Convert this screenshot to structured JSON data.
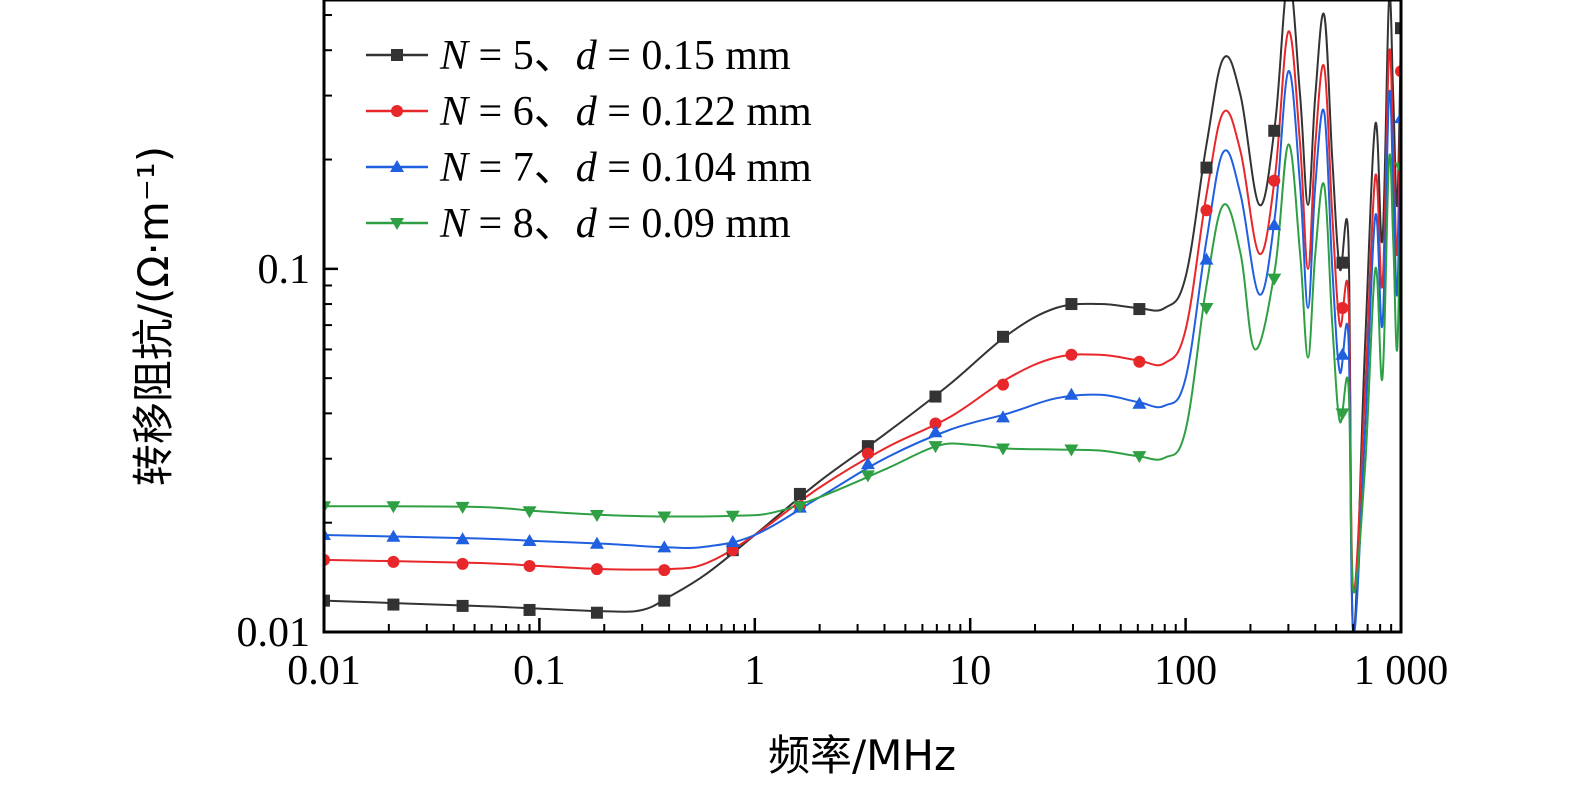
{
  "chart_data": {
    "type": "line",
    "xscale": "log",
    "yscale": "log",
    "xlim": [
      0.01,
      1000
    ],
    "ylim": [
      0.01,
      0.55
    ],
    "xlabel": "频率/MHz",
    "ylabel": "转移阻抗/(Ω·m⁻¹)",
    "xticks": [
      0.01,
      0.1,
      1,
      10,
      100,
      1000
    ],
    "xtick_labels": [
      "0.01",
      "0.1",
      "1",
      "10",
      "100",
      "1 000"
    ],
    "yticks": [
      0.01,
      0.1
    ],
    "ytick_labels": [
      "0.01",
      "0.1"
    ],
    "legend_position": "top-left",
    "series": [
      {
        "name": "N = 5、d = 0.15 mm",
        "legend": {
          "n_sym": "N",
          "n_eq": " = 5、",
          "d_sym": "d",
          "d_eq": " = 0.15 mm"
        },
        "color": "#333333",
        "marker": "square",
        "markers": [
          [
            0.01,
            0.0122
          ],
          [
            0.021,
            0.0119
          ],
          [
            0.044,
            0.0118
          ],
          [
            0.09,
            0.0115
          ],
          [
            0.185,
            0.0113
          ],
          [
            0.38,
            0.0122
          ],
          [
            0.79,
            0.0168
          ],
          [
            1.62,
            0.024
          ],
          [
            3.35,
            0.0325
          ],
          [
            6.9,
            0.0445
          ],
          [
            14.2,
            0.065
          ],
          [
            29.5,
            0.08
          ],
          [
            61,
            0.0775
          ],
          [
            125,
            0.19
          ],
          [
            258,
            0.24
          ],
          [
            535,
            0.104
          ],
          [
            1000,
            0.46
          ]
        ],
        "curve": [
          [
            0.01,
            0.0122
          ],
          [
            0.05,
            0.0118
          ],
          [
            0.1,
            0.0116
          ],
          [
            0.2,
            0.0114
          ],
          [
            0.3,
            0.0115
          ],
          [
            0.4,
            0.0125
          ],
          [
            0.6,
            0.0145
          ],
          [
            1,
            0.0185
          ],
          [
            2,
            0.026
          ],
          [
            4,
            0.035
          ],
          [
            8,
            0.048
          ],
          [
            15,
            0.066
          ],
          [
            25,
            0.078
          ],
          [
            40,
            0.08
          ],
          [
            60,
            0.078
          ],
          [
            80,
            0.078
          ],
          [
            100,
            0.095
          ],
          [
            125,
            0.22
          ],
          [
            150,
            0.38
          ],
          [
            180,
            0.3
          ],
          [
            220,
            0.15
          ],
          [
            260,
            0.25
          ],
          [
            300,
            0.63
          ],
          [
            340,
            0.3
          ],
          [
            370,
            0.15
          ],
          [
            400,
            0.3
          ],
          [
            440,
            0.5
          ],
          [
            480,
            0.2
          ],
          [
            520,
            0.1
          ],
          [
            570,
            0.12
          ],
          [
            600,
            0.01
          ],
          [
            680,
            0.06
          ],
          [
            760,
            0.25
          ],
          [
            820,
            0.12
          ],
          [
            880,
            0.55
          ],
          [
            920,
            0.3
          ],
          [
            960,
            0.15
          ],
          [
            1000,
            0.46
          ]
        ]
      },
      {
        "name": "N = 6、d = 0.122 mm",
        "legend": {
          "n_sym": "N",
          "n_eq": " = 6、",
          "d_sym": "d",
          "d_eq": " = 0.122 mm"
        },
        "color": "#e8272a",
        "marker": "circle",
        "markers": [
          [
            0.01,
            0.0158
          ],
          [
            0.021,
            0.0156
          ],
          [
            0.044,
            0.0154
          ],
          [
            0.09,
            0.0152
          ],
          [
            0.185,
            0.0149
          ],
          [
            0.38,
            0.0148
          ],
          [
            0.79,
            0.0168
          ],
          [
            1.62,
            0.0222
          ],
          [
            3.35,
            0.031
          ],
          [
            6.9,
            0.0375
          ],
          [
            14.2,
            0.048
          ],
          [
            29.5,
            0.058
          ],
          [
            61,
            0.0555
          ],
          [
            125,
            0.145
          ],
          [
            258,
            0.175
          ],
          [
            535,
            0.078
          ],
          [
            1000,
            0.35
          ]
        ],
        "curve": [
          [
            0.01,
            0.0158
          ],
          [
            0.05,
            0.0155
          ],
          [
            0.1,
            0.0152
          ],
          [
            0.2,
            0.0149
          ],
          [
            0.4,
            0.0149
          ],
          [
            0.6,
            0.0155
          ],
          [
            1,
            0.0185
          ],
          [
            2,
            0.025
          ],
          [
            4,
            0.032
          ],
          [
            8,
            0.039
          ],
          [
            15,
            0.05
          ],
          [
            25,
            0.057
          ],
          [
            40,
            0.058
          ],
          [
            60,
            0.056
          ],
          [
            80,
            0.055
          ],
          [
            100,
            0.068
          ],
          [
            125,
            0.16
          ],
          [
            150,
            0.27
          ],
          [
            180,
            0.21
          ],
          [
            220,
            0.11
          ],
          [
            260,
            0.18
          ],
          [
            300,
            0.45
          ],
          [
            340,
            0.22
          ],
          [
            370,
            0.1
          ],
          [
            400,
            0.22
          ],
          [
            440,
            0.36
          ],
          [
            480,
            0.14
          ],
          [
            520,
            0.07
          ],
          [
            570,
            0.085
          ],
          [
            600,
            0.013
          ],
          [
            680,
            0.045
          ],
          [
            760,
            0.18
          ],
          [
            820,
            0.09
          ],
          [
            880,
            0.39
          ],
          [
            920,
            0.22
          ],
          [
            960,
            0.11
          ],
          [
            1000,
            0.35
          ]
        ]
      },
      {
        "name": "N = 7、d = 0.104 mm",
        "legend": {
          "n_sym": "N",
          "n_eq": " = 7、",
          "d_sym": "d",
          "d_eq": " = 0.104 mm"
        },
        "color": "#1f5fe0",
        "marker": "triangle-up",
        "markers": [
          [
            0.01,
            0.0185
          ],
          [
            0.021,
            0.0183
          ],
          [
            0.044,
            0.018
          ],
          [
            0.09,
            0.0178
          ],
          [
            0.185,
            0.0175
          ],
          [
            0.38,
            0.0171
          ],
          [
            0.79,
            0.0177
          ],
          [
            1.62,
            0.022
          ],
          [
            3.35,
            0.029
          ],
          [
            6.9,
            0.0355
          ],
          [
            14.2,
            0.039
          ],
          [
            29.5,
            0.045
          ],
          [
            61,
            0.0425
          ],
          [
            125,
            0.106
          ],
          [
            258,
            0.132
          ],
          [
            535,
            0.058
          ],
          [
            1000,
            0.26
          ]
        ],
        "curve": [
          [
            0.01,
            0.0185
          ],
          [
            0.05,
            0.0181
          ],
          [
            0.1,
            0.0178
          ],
          [
            0.2,
            0.0175
          ],
          [
            0.4,
            0.0171
          ],
          [
            0.6,
            0.0172
          ],
          [
            1,
            0.0185
          ],
          [
            2,
            0.0235
          ],
          [
            4,
            0.03
          ],
          [
            8,
            0.036
          ],
          [
            15,
            0.04
          ],
          [
            25,
            0.044
          ],
          [
            40,
            0.045
          ],
          [
            60,
            0.043
          ],
          [
            80,
            0.042
          ],
          [
            100,
            0.05
          ],
          [
            125,
            0.12
          ],
          [
            150,
            0.21
          ],
          [
            180,
            0.16
          ],
          [
            220,
            0.085
          ],
          [
            260,
            0.14
          ],
          [
            300,
            0.35
          ],
          [
            340,
            0.17
          ],
          [
            370,
            0.078
          ],
          [
            400,
            0.17
          ],
          [
            440,
            0.27
          ],
          [
            480,
            0.1
          ],
          [
            520,
            0.052
          ],
          [
            570,
            0.065
          ],
          [
            600,
            0.01
          ],
          [
            680,
            0.035
          ],
          [
            760,
            0.14
          ],
          [
            820,
            0.07
          ],
          [
            880,
            0.3
          ],
          [
            920,
            0.17
          ],
          [
            960,
            0.085
          ],
          [
            1000,
            0.26
          ]
        ]
      },
      {
        "name": "N = 8、d = 0.09 mm",
        "legend": {
          "n_sym": "N",
          "n_eq": " = 8、",
          "d_sym": "d",
          "d_eq": " = 0.09 mm"
        },
        "color": "#2ea043",
        "marker": "triangle-down",
        "markers": [
          [
            0.01,
            0.0222
          ],
          [
            0.021,
            0.0222
          ],
          [
            0.044,
            0.0221
          ],
          [
            0.09,
            0.0215
          ],
          [
            0.185,
            0.021
          ],
          [
            0.38,
            0.0208
          ],
          [
            0.79,
            0.0209
          ],
          [
            1.62,
            0.0222
          ],
          [
            3.35,
            0.027
          ],
          [
            6.9,
            0.0325
          ],
          [
            14.2,
            0.032
          ],
          [
            29.5,
            0.0318
          ],
          [
            61,
            0.0305
          ],
          [
            125,
            0.078
          ],
          [
            258,
            0.094
          ],
          [
            535,
            0.04
          ],
          [
            1000,
            0.19
          ]
        ],
        "curve": [
          [
            0.01,
            0.0222
          ],
          [
            0.05,
            0.0221
          ],
          [
            0.1,
            0.0215
          ],
          [
            0.2,
            0.021
          ],
          [
            0.4,
            0.0208
          ],
          [
            0.8,
            0.0209
          ],
          [
            1.2,
            0.0213
          ],
          [
            2,
            0.0235
          ],
          [
            4,
            0.028
          ],
          [
            7,
            0.0325
          ],
          [
            10,
            0.0328
          ],
          [
            15,
            0.032
          ],
          [
            25,
            0.0318
          ],
          [
            40,
            0.0316
          ],
          [
            60,
            0.0305
          ],
          [
            80,
            0.0302
          ],
          [
            100,
            0.036
          ],
          [
            125,
            0.09
          ],
          [
            150,
            0.15
          ],
          [
            180,
            0.11
          ],
          [
            210,
            0.06
          ],
          [
            260,
            0.1
          ],
          [
            300,
            0.22
          ],
          [
            340,
            0.11
          ],
          [
            370,
            0.057
          ],
          [
            400,
            0.11
          ],
          [
            440,
            0.17
          ],
          [
            480,
            0.07
          ],
          [
            520,
            0.038
          ],
          [
            570,
            0.048
          ],
          [
            600,
            0.013
          ],
          [
            680,
            0.028
          ],
          [
            760,
            0.1
          ],
          [
            820,
            0.05
          ],
          [
            880,
            0.2
          ],
          [
            920,
            0.12
          ],
          [
            960,
            0.06
          ],
          [
            1000,
            0.19
          ]
        ]
      }
    ]
  }
}
